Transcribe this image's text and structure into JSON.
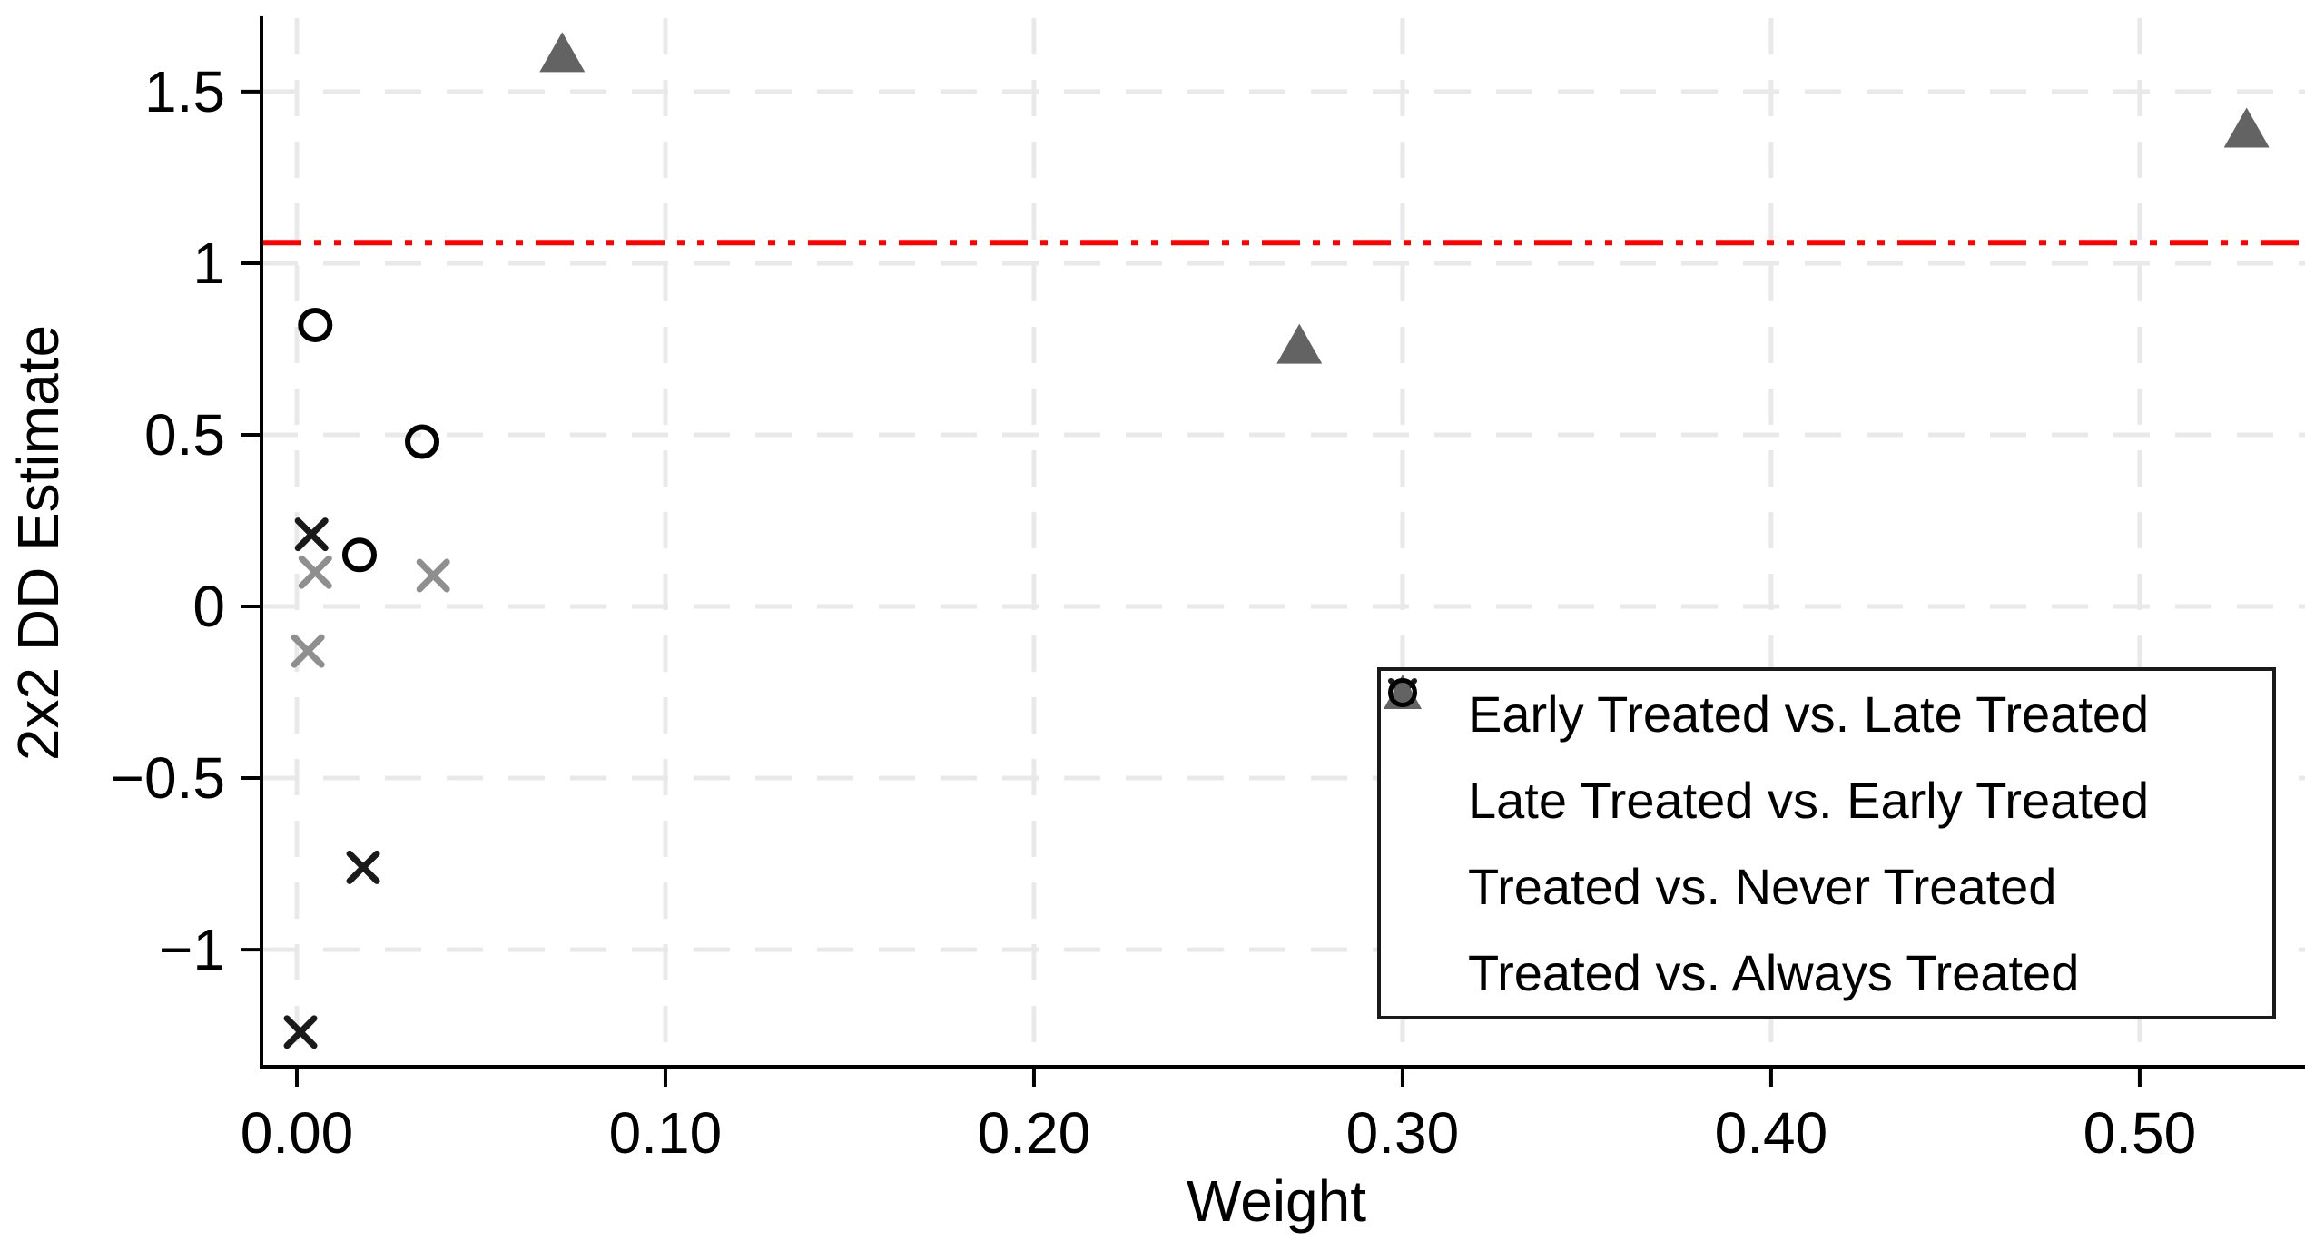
{
  "chart_data": {
    "type": "scatter",
    "title": "",
    "xlabel": "Weight",
    "ylabel": "2x2 DD Estimate",
    "xlim": [
      -0.0096,
      0.5414
    ],
    "ylim": [
      -1.341,
      1.714
    ],
    "grid": true,
    "x_ticks": [
      {
        "v": 0.0,
        "label": "0.00"
      },
      {
        "v": 0.1,
        "label": "0.10"
      },
      {
        "v": 0.2,
        "label": "0.20"
      },
      {
        "v": 0.3,
        "label": "0.30"
      },
      {
        "v": 0.4,
        "label": "0.40"
      },
      {
        "v": 0.5,
        "label": "0.50"
      }
    ],
    "y_ticks": [
      {
        "v": 1.5,
        "label": "1.5"
      },
      {
        "v": 1.0,
        "label": "1"
      },
      {
        "v": 0.5,
        "label": "0.5"
      },
      {
        "v": 0.0,
        "label": "0"
      },
      {
        "v": -0.5,
        "label": "−0.5"
      },
      {
        "v": -1.0,
        "label": "−1"
      }
    ],
    "reference_line": {
      "value": 1.06,
      "color": "#ff0000",
      "style": "dash-dot-dot"
    },
    "series": [
      {
        "name": "Early Treated vs. Late Treated",
        "marker": "x",
        "color": "#8f8f8f",
        "points": [
          [
            0.005,
            0.1
          ],
          [
            0.037,
            0.09
          ],
          [
            0.003,
            -0.13
          ]
        ]
      },
      {
        "name": "Late Treated vs. Early Treated",
        "marker": "x",
        "color": "#1a1a1a",
        "points": [
          [
            0.004,
            0.21
          ],
          [
            0.018,
            -0.76
          ],
          [
            0.001,
            -1.24
          ]
        ]
      },
      {
        "name": "Treated vs. Never Treated",
        "marker": "triangle",
        "color": "#636363",
        "points": [
          [
            0.072,
            1.61
          ],
          [
            0.272,
            0.76
          ],
          [
            0.529,
            1.39
          ]
        ]
      },
      {
        "name": "Treated vs. Always Treated",
        "marker": "circle",
        "color": "#000000",
        "points": [
          [
            0.005,
            0.82
          ],
          [
            0.017,
            0.15
          ],
          [
            0.034,
            0.48
          ]
        ]
      }
    ],
    "legend_position": "bottom-right"
  },
  "colors": {
    "background": "#ffffff",
    "axis": "#000000",
    "grid": "#e9e9e9",
    "reference": "#ff0000",
    "gray_marker": "#8f8f8f",
    "black_marker": "#1a1a1a",
    "triangle_fill": "#636363",
    "legend_border": "#1a1a1a"
  }
}
